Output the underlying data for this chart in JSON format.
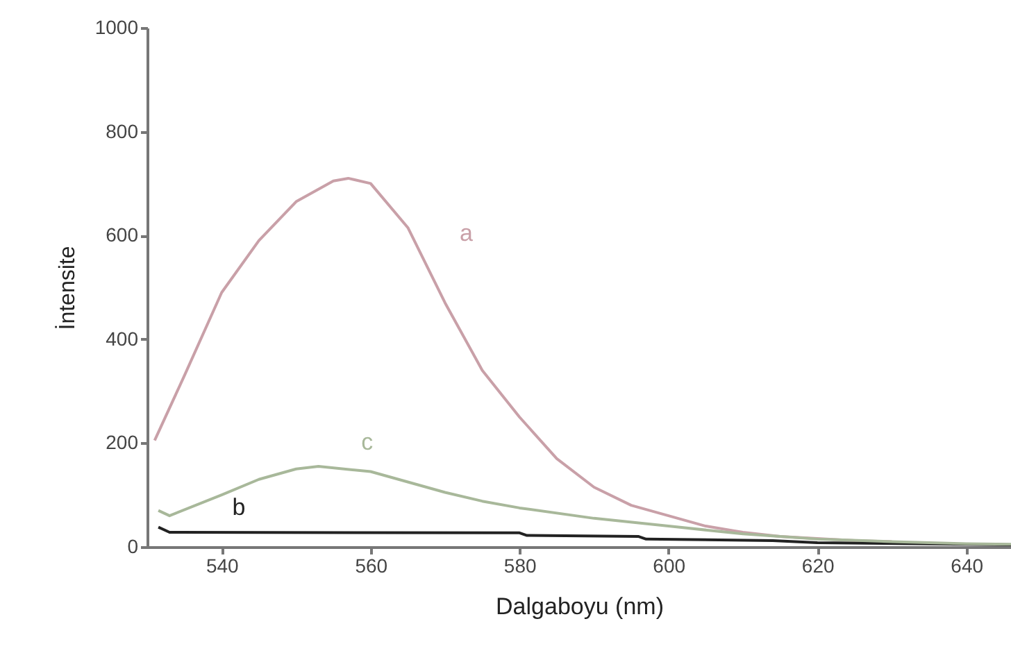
{
  "chart_data": {
    "type": "line",
    "xlabel": "Dalgaboyu (nm)",
    "ylabel": "İntensite",
    "xlim": [
      530,
      646
    ],
    "xticks": [
      540,
      560,
      580,
      600,
      620,
      640
    ],
    "ylim": [
      0,
      1000
    ],
    "yticks": [
      0,
      200,
      400,
      600,
      800,
      1000
    ],
    "grid": false,
    "legend": false,
    "marker": "none",
    "line_style": "solid",
    "series": [
      {
        "name": "a",
        "color": "#c9a0a8",
        "x": [
          531,
          535,
          540,
          545,
          550,
          555,
          557,
          560,
          565,
          570,
          575,
          580,
          585,
          590,
          595,
          600,
          605,
          610,
          615,
          620,
          625,
          630
        ],
        "values": [
          205,
          330,
          490,
          590,
          665,
          705,
          710,
          700,
          615,
          470,
          340,
          250,
          170,
          115,
          80,
          60,
          40,
          28,
          20,
          16,
          12,
          10
        ]
      },
      {
        "name": "b",
        "color": "#222222",
        "x": [
          531.5,
          533,
          580,
          581,
          596,
          597,
          614,
          620,
          640,
          646
        ],
        "values": [
          38,
          28,
          27,
          22,
          20,
          15,
          12,
          8,
          5,
          4
        ]
      },
      {
        "name": "c",
        "color": "#a8b89a",
        "x": [
          531.5,
          533,
          540,
          545,
          550,
          553,
          560,
          565,
          570,
          575,
          580,
          590,
          600,
          610,
          620,
          630,
          640,
          646
        ],
        "values": [
          70,
          60,
          100,
          130,
          150,
          155,
          145,
          125,
          105,
          88,
          75,
          55,
          40,
          25,
          15,
          10,
          6,
          5
        ]
      }
    ]
  }
}
